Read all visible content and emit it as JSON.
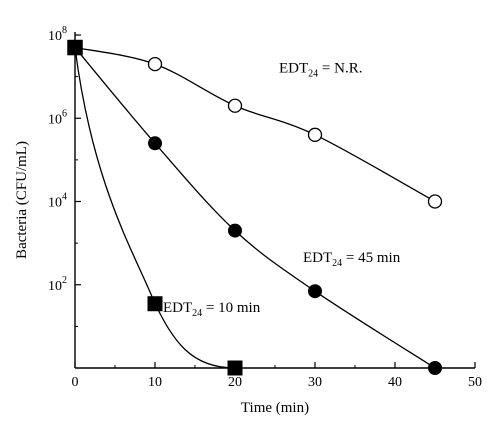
{
  "chart_data": {
    "type": "scatter",
    "xlabel": "Time (min)",
    "ylabel": "Bacteria (CFU/mL)",
    "xlim": [
      0,
      50
    ],
    "ylim_log10": [
      0,
      8
    ],
    "y_scale": "log",
    "x_ticks": [
      {
        "value": 0,
        "label": "0"
      },
      {
        "value": 10,
        "label": "10"
      },
      {
        "value": 20,
        "label": "20"
      },
      {
        "value": 30,
        "label": "30"
      },
      {
        "value": 40,
        "label": "40"
      },
      {
        "value": 50,
        "label": "50"
      }
    ],
    "y_ticks": [
      {
        "exp": 2,
        "base": "10",
        "sup": "2"
      },
      {
        "exp": 4,
        "base": "10",
        "sup": "4"
      },
      {
        "exp": 6,
        "base": "10",
        "sup": "6"
      },
      {
        "exp": 8,
        "base": "10",
        "sup": "8"
      }
    ],
    "grid": false,
    "series": [
      {
        "marker": "open-circle",
        "points": [
          [
            0,
            50000000
          ],
          [
            10,
            20000000
          ],
          [
            20,
            2000000
          ],
          [
            30,
            400000
          ],
          [
            45,
            10000
          ]
        ]
      },
      {
        "marker": "filled-circle",
        "points": [
          [
            0,
            50000000
          ],
          [
            10,
            250000
          ],
          [
            20,
            2000
          ],
          [
            30,
            70
          ],
          [
            45,
            1
          ]
        ]
      },
      {
        "marker": "filled-square",
        "points": [
          [
            0,
            50000000
          ],
          [
            10,
            35
          ],
          [
            20,
            1
          ]
        ]
      }
    ],
    "annotations": [
      {
        "main": "EDT",
        "sub": "24",
        "rest": " = N.R.",
        "at": [
          25.5,
          7.1
        ]
      },
      {
        "main": "EDT",
        "sub": "24",
        "rest": " = 45 min",
        "at": [
          28.5,
          2.55
        ]
      },
      {
        "main": "EDT",
        "sub": "24",
        "rest": " = 10 min",
        "at": [
          11,
          1.35
        ]
      }
    ]
  }
}
